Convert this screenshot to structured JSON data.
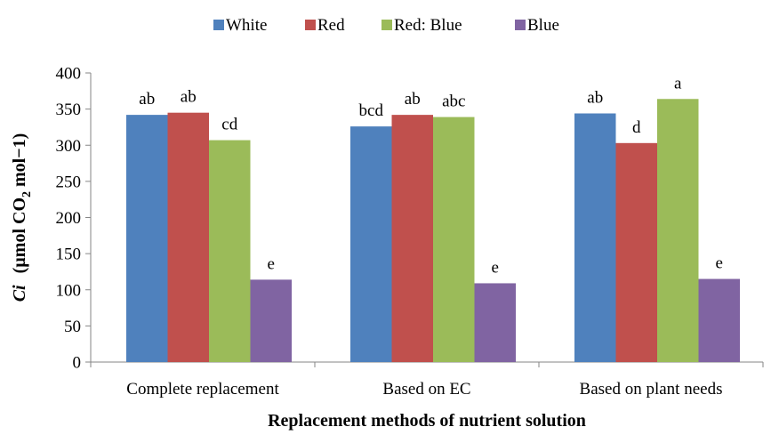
{
  "chart_data": {
    "type": "bar",
    "title": "",
    "xlabel": "Replacement methods of nutrient solution",
    "ylabel_parts": {
      "italic": "Ci",
      "pre": "(µmol CO",
      "sub": "2",
      "post": " mol−1)"
    },
    "ylim": [
      0,
      400
    ],
    "yticks": [
      0,
      50,
      100,
      150,
      200,
      250,
      300,
      350,
      400
    ],
    "grid": false,
    "legend_position": "top-center",
    "categories": [
      "Complete replacement",
      "Based on EC",
      "Based on plant needs"
    ],
    "series": [
      {
        "name": "White",
        "color": "#4F81BD",
        "values": [
          342,
          326,
          344
        ],
        "letters": [
          "ab",
          "bcd",
          "ab"
        ]
      },
      {
        "name": "Red",
        "color": "#C0504D",
        "values": [
          345,
          342,
          303
        ],
        "letters": [
          "ab",
          "ab",
          "d"
        ]
      },
      {
        "name": "Red: Blue",
        "color": "#9BBB59",
        "values": [
          307,
          339,
          364
        ],
        "letters": [
          "cd",
          "abc",
          "a"
        ]
      },
      {
        "name": "Blue",
        "color": "#8064A2",
        "values": [
          114,
          109,
          115
        ],
        "letters": [
          "e",
          "e",
          "e"
        ]
      }
    ]
  }
}
